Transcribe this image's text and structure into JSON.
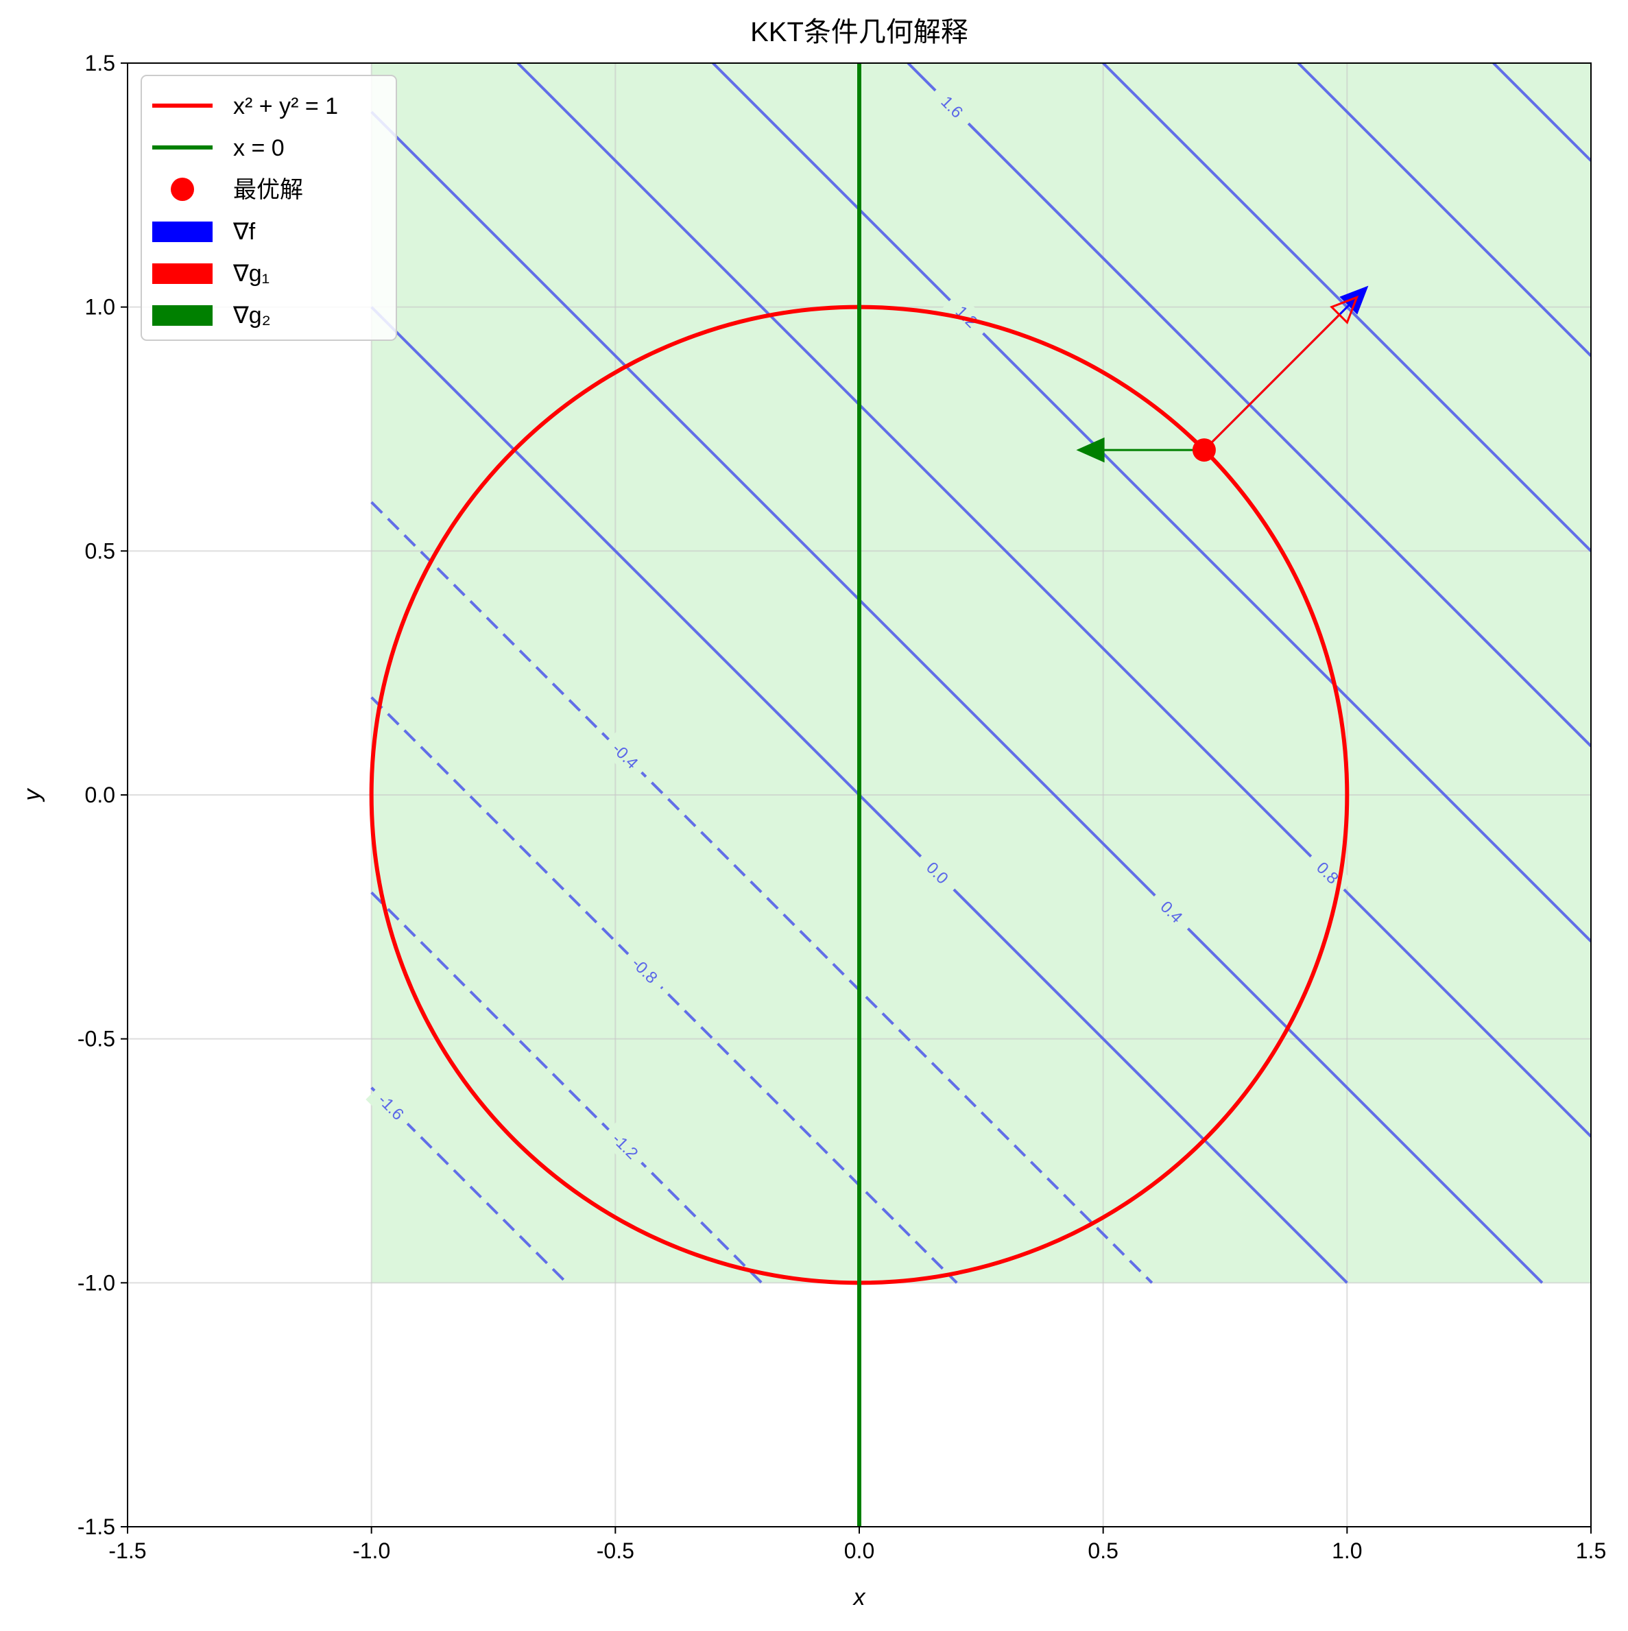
{
  "chart_data": {
    "type": "contour",
    "title": "KKT条件几何解释",
    "xlabel": "x",
    "ylabel": "y",
    "xlim": [
      -1.5,
      1.5
    ],
    "ylim": [
      -1.5,
      1.5
    ],
    "xticks": [
      -1.5,
      -1.0,
      -0.5,
      0.0,
      0.5,
      1.0,
      1.5
    ],
    "xtick_labels": [
      "-1.5",
      "-1.0",
      "-0.5",
      "0.0",
      "0.5",
      "1.0",
      "1.5"
    ],
    "yticks": [
      -1.5,
      -1.0,
      -0.5,
      0.0,
      0.5,
      1.0,
      1.5
    ],
    "ytick_labels": [
      "-1.5",
      "-1.0",
      "-0.5",
      "0.0",
      "0.5",
      "1.0",
      "1.5"
    ],
    "grid": true,
    "feasible_region": {
      "x": [
        -1.0,
        1.5
      ],
      "y": [
        -1.0,
        1.5
      ],
      "color": "#dcf6dc"
    },
    "contours": {
      "function": "x + y",
      "color": "#5a66e8",
      "levels": [
        -1.6,
        -1.2,
        -0.8,
        -0.4,
        0.0,
        0.4,
        0.8,
        1.2,
        1.6,
        2.0,
        2.4,
        2.8
      ],
      "labels": [
        {
          "level": -1.6,
          "text": "-1.6",
          "x": -0.96
        },
        {
          "level": -1.2,
          "text": "-1.2",
          "x": -0.48
        },
        {
          "level": -0.8,
          "text": "-0.8",
          "x": -0.44
        },
        {
          "level": -0.4,
          "text": "-0.4",
          "x": -0.48
        },
        {
          "level": 0.0,
          "text": "0.0",
          "x": 0.16
        },
        {
          "level": 0.4,
          "text": "0.4",
          "x": 0.64
        },
        {
          "level": 0.8,
          "text": "0.8",
          "x": 0.96
        },
        {
          "level": 1.2,
          "text": "1.2",
          "x": 0.22
        },
        {
          "level": 1.6,
          "text": "1.6",
          "x": 0.19
        }
      ]
    },
    "circle": {
      "label": "x² + y² = 1",
      "radius": 1.0,
      "color": "#ff0000"
    },
    "vertical_line": {
      "label": "x = 0",
      "x": 0.0,
      "color": "#008000"
    },
    "optimal_point": {
      "label": "最优解",
      "x": 0.707,
      "y": 0.707,
      "color": "#ff0000"
    },
    "arrows": [
      {
        "label": "∇f",
        "from": [
          0.707,
          0.707
        ],
        "to": [
          1.04,
          1.04
        ],
        "color": "#0000ff"
      },
      {
        "label": "∇g₁",
        "from": [
          0.707,
          0.707
        ],
        "to": [
          1.02,
          1.02
        ],
        "color": "#ff0000"
      },
      {
        "label": "∇g₂",
        "from": [
          0.707,
          0.707
        ],
        "to": [
          0.45,
          0.707
        ],
        "color": "#008000"
      }
    ],
    "legend": {
      "position": "top-left",
      "entries": [
        {
          "label": "x² + y² = 1",
          "kind": "line",
          "color": "#ff0000"
        },
        {
          "label": "x = 0",
          "kind": "line",
          "color": "#008000"
        },
        {
          "label": "最优解",
          "kind": "dot",
          "color": "#ff0000"
        },
        {
          "label": "∇f",
          "kind": "patch",
          "color": "#0000ff"
        },
        {
          "label": "∇g₁",
          "kind": "patch",
          "color": "#ff0000"
        },
        {
          "label": "∇g₂",
          "kind": "patch",
          "color": "#008000"
        }
      ]
    }
  }
}
